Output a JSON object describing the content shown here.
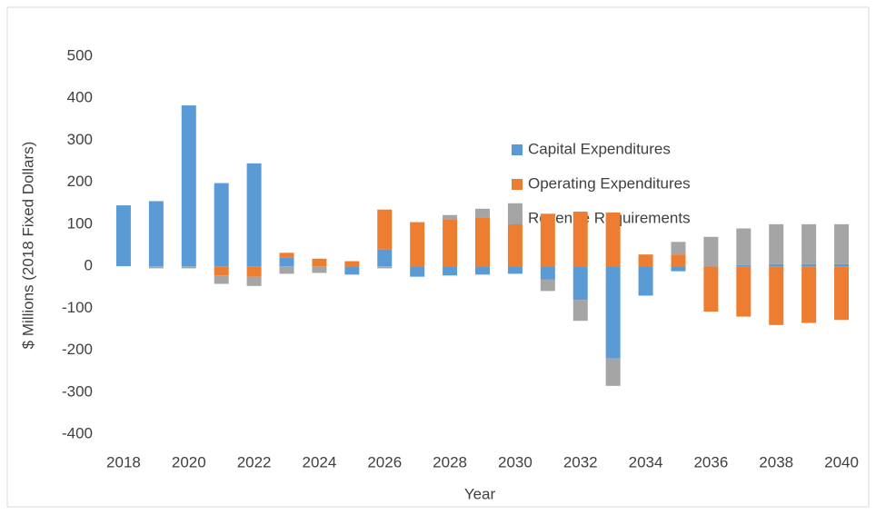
{
  "chart_data": {
    "type": "bar",
    "stacked": true,
    "x_label": "Year",
    "y_label": "$ Millions (2018 Fixed Dollars)",
    "categories": [
      "2018",
      null,
      "2020",
      null,
      "2022",
      null,
      "2024",
      null,
      "2026",
      null,
      "2028",
      null,
      "2030",
      null,
      "2032",
      null,
      "2034",
      null,
      "2036",
      null,
      "2038",
      null,
      "2040"
    ],
    "series": [
      {
        "name": "Capital Expenditures",
        "color": "#5b9bd5",
        "values": [
          145,
          155,
          383,
          198,
          245,
          20,
          0,
          -20,
          40,
          -25,
          -22,
          -20,
          -18,
          -32,
          -80,
          -220,
          -70,
          -12,
          0,
          3,
          5,
          5,
          5
        ]
      },
      {
        "name": "Operating Expenditures",
        "color": "#ed7d31",
        "values": [
          0,
          0,
          0,
          -22,
          -25,
          12,
          18,
          12,
          95,
          105,
          112,
          115,
          100,
          125,
          130,
          128,
          28,
          28,
          -108,
          -120,
          -140,
          -135,
          -128
        ]
      },
      {
        "name": "Revenue Requirements",
        "color": "#a5a5a5",
        "values": [
          0,
          -5,
          -5,
          -20,
          -22,
          -18,
          -16,
          0,
          -5,
          0,
          10,
          22,
          50,
          -27,
          -50,
          -65,
          0,
          30,
          70,
          87,
          95,
          95,
          95
        ]
      }
    ],
    "ylim": [
      -400,
      500
    ],
    "yticks": [
      -400,
      -300,
      -200,
      -100,
      0,
      100,
      200,
      300,
      400,
      500
    ],
    "grid": false
  }
}
